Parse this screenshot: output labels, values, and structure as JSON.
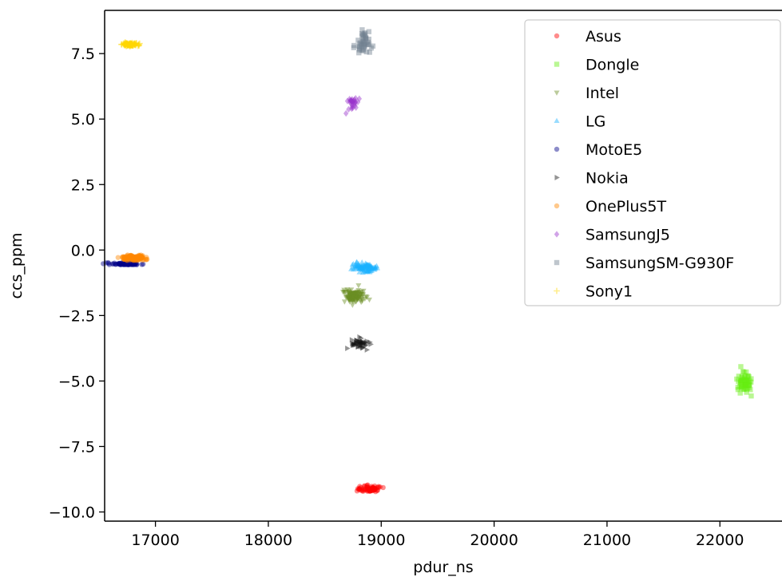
{
  "chart_data": {
    "type": "scatter",
    "title": "",
    "xlabel": "pdur_ns",
    "ylabel": "ccs_ppm",
    "xlim": [
      16550,
      22550
    ],
    "ylim": [
      -10.35,
      9.15
    ],
    "xticks": [
      17000,
      18000,
      19000,
      20000,
      21000,
      22000
    ],
    "yticks": [
      -10.0,
      -7.5,
      -5.0,
      -2.5,
      0.0,
      2.5,
      5.0,
      7.5
    ],
    "ytick_labels": [
      "−10.0",
      "−7.5",
      "−5.0",
      "−2.5",
      "0.0",
      "2.5",
      "5.0",
      "7.5"
    ],
    "grid": false,
    "legend_position": "top-right",
    "series": [
      {
        "name": "Asus",
        "marker": "circle",
        "color": "#ff0000",
        "clusters": [
          {
            "x": [
              18680,
              19100
            ],
            "y": [
              -9.35,
              -8.9
            ],
            "n": 70
          }
        ]
      },
      {
        "name": "Dongle",
        "marker": "square",
        "color": "#66ee11",
        "clusters": [
          {
            "x": [
              22100,
              22330
            ],
            "y": [
              -5.75,
              -4.3
            ],
            "n": 60
          }
        ]
      },
      {
        "name": "Intel",
        "marker": "triangle-down",
        "color": "#6b8e23",
        "clusters": [
          {
            "x": [
              18600,
              18930
            ],
            "y": [
              -2.2,
              -1.3
            ],
            "n": 120
          }
        ]
      },
      {
        "name": "LG",
        "marker": "triangle-up",
        "color": "#1ab2ff",
        "clusters": [
          {
            "x": [
              18650,
              19050
            ],
            "y": [
              -0.95,
              -0.35
            ],
            "n": 100
          }
        ]
      },
      {
        "name": "MotoE5",
        "marker": "circle",
        "color": "#000088",
        "clusters": [
          {
            "x": [
              16480,
              16960
            ],
            "y": [
              -0.6,
              -0.45
            ],
            "n": 80
          }
        ]
      },
      {
        "name": "Nokia",
        "marker": "triangle-right",
        "color": "#111111",
        "clusters": [
          {
            "x": [
              18660,
              18970
            ],
            "y": [
              -3.95,
              -3.25
            ],
            "n": 45
          }
        ]
      },
      {
        "name": "OnePlus5T",
        "marker": "circle",
        "color": "#ff8800",
        "clusters": [
          {
            "x": [
              16620,
              17000
            ],
            "y": [
              -0.45,
              -0.15
            ],
            "n": 160
          }
        ]
      },
      {
        "name": "SamsungJ5",
        "marker": "diamond",
        "color": "#9932cc",
        "clusters": [
          {
            "x": [
              18620,
              18880
            ],
            "y": [
              5.0,
              6.2
            ],
            "n": 28
          }
        ]
      },
      {
        "name": "SamsungSM-G930F",
        "marker": "square",
        "color": "#708090",
        "clusters": [
          {
            "x": [
              18730,
              18960
            ],
            "y": [
              7.1,
              8.7
            ],
            "n": 45
          }
        ]
      },
      {
        "name": "Sony1",
        "marker": "plus",
        "color": "#ffd700",
        "clusters": [
          {
            "x": [
              16650,
              16900
            ],
            "y": [
              7.75,
              7.95
            ],
            "n": 100
          }
        ]
      }
    ]
  }
}
